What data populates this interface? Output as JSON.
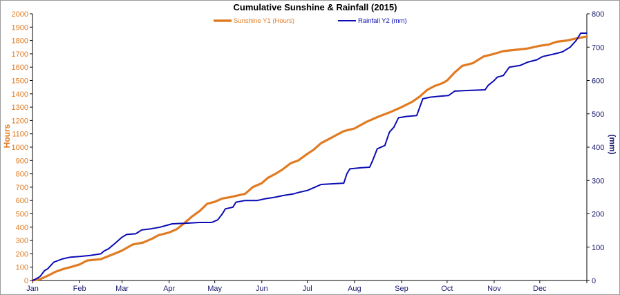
{
  "colors": {
    "sunshine": "#e07b22",
    "rainfall": "#0b0bb4",
    "left_axis_text": "#e07b22",
    "right_axis_text": "#1a1a6e",
    "month_text": "#1a1a6e"
  },
  "chart_data": {
    "type": "line",
    "title": "Cumulative Sunshine & Rainfall (2015)",
    "xlabel": "",
    "y1label": "Hours",
    "y2label": "(mm)",
    "x_range": [
      0,
      365
    ],
    "y1lim": [
      0,
      2000
    ],
    "y2lim": [
      0,
      800
    ],
    "y1_ticks": [
      0,
      100,
      200,
      300,
      400,
      500,
      600,
      700,
      800,
      900,
      1000,
      1100,
      1200,
      1300,
      1400,
      1500,
      1600,
      1700,
      1800,
      1900,
      2000
    ],
    "y2_ticks": [
      0,
      100,
      200,
      300,
      400,
      500,
      600,
      700,
      800
    ],
    "months": [
      {
        "label": "Jan",
        "day": 0
      },
      {
        "label": "Feb",
        "day": 31
      },
      {
        "label": "Mar",
        "day": 59
      },
      {
        "label": "Apr",
        "day": 90
      },
      {
        "label": "May",
        "day": 120
      },
      {
        "label": "Jun",
        "day": 151
      },
      {
        "label": "Jul",
        "day": 181
      },
      {
        "label": "Aug",
        "day": 212
      },
      {
        "label": "Sep",
        "day": 243
      },
      {
        "label": "Oct",
        "day": 273
      },
      {
        "label": "Nov",
        "day": 304
      },
      {
        "label": "Dec",
        "day": 334
      }
    ],
    "grid": false,
    "legend_position": "top-center",
    "series": [
      {
        "name": "Sunshine Y1 (Hours)",
        "axis": "y1",
        "points": [
          [
            0,
            0
          ],
          [
            5,
            10
          ],
          [
            10,
            35
          ],
          [
            15,
            65
          ],
          [
            20,
            85
          ],
          [
            25,
            100
          ],
          [
            31,
            120
          ],
          [
            36,
            150
          ],
          [
            45,
            160
          ],
          [
            55,
            205
          ],
          [
            59,
            225
          ],
          [
            66,
            270
          ],
          [
            73,
            285
          ],
          [
            79,
            315
          ],
          [
            83,
            340
          ],
          [
            90,
            360
          ],
          [
            95,
            385
          ],
          [
            100,
            430
          ],
          [
            105,
            480
          ],
          [
            110,
            520
          ],
          [
            115,
            575
          ],
          [
            120,
            590
          ],
          [
            125,
            615
          ],
          [
            130,
            625
          ],
          [
            140,
            650
          ],
          [
            145,
            700
          ],
          [
            151,
            730
          ],
          [
            155,
            770
          ],
          [
            160,
            800
          ],
          [
            165,
            835
          ],
          [
            170,
            880
          ],
          [
            175,
            900
          ],
          [
            181,
            950
          ],
          [
            185,
            980
          ],
          [
            190,
            1030
          ],
          [
            195,
            1060
          ],
          [
            200,
            1090
          ],
          [
            205,
            1120
          ],
          [
            212,
            1140
          ],
          [
            220,
            1190
          ],
          [
            228,
            1230
          ],
          [
            235,
            1260
          ],
          [
            243,
            1300
          ],
          [
            250,
            1340
          ],
          [
            255,
            1380
          ],
          [
            260,
            1430
          ],
          [
            265,
            1460
          ],
          [
            270,
            1480
          ],
          [
            273,
            1500
          ],
          [
            278,
            1560
          ],
          [
            283,
            1610
          ],
          [
            290,
            1630
          ],
          [
            297,
            1680
          ],
          [
            304,
            1700
          ],
          [
            310,
            1720
          ],
          [
            318,
            1730
          ],
          [
            326,
            1740
          ],
          [
            334,
            1760
          ],
          [
            340,
            1770
          ],
          [
            345,
            1790
          ],
          [
            352,
            1800
          ],
          [
            358,
            1815
          ],
          [
            365,
            1830
          ]
        ]
      },
      {
        "name": "Rainfall Y2 (mm)",
        "axis": "y2",
        "points": [
          [
            0,
            0
          ],
          [
            2,
            4
          ],
          [
            5,
            12
          ],
          [
            8,
            30
          ],
          [
            10,
            35
          ],
          [
            14,
            55
          ],
          [
            20,
            65
          ],
          [
            25,
            70
          ],
          [
            31,
            72
          ],
          [
            38,
            75
          ],
          [
            45,
            80
          ],
          [
            47,
            88
          ],
          [
            50,
            95
          ],
          [
            54,
            110
          ],
          [
            59,
            130
          ],
          [
            62,
            138
          ],
          [
            68,
            140
          ],
          [
            72,
            152
          ],
          [
            78,
            155
          ],
          [
            84,
            160
          ],
          [
            88,
            165
          ],
          [
            92,
            170
          ],
          [
            102,
            172
          ],
          [
            110,
            174
          ],
          [
            118,
            174
          ],
          [
            122,
            182
          ],
          [
            125,
            200
          ],
          [
            127,
            215
          ],
          [
            132,
            220
          ],
          [
            134,
            235
          ],
          [
            140,
            240
          ],
          [
            148,
            240
          ],
          [
            153,
            245
          ],
          [
            160,
            250
          ],
          [
            165,
            255
          ],
          [
            172,
            260
          ],
          [
            176,
            265
          ],
          [
            181,
            270
          ],
          [
            186,
            280
          ],
          [
            190,
            288
          ],
          [
            197,
            290
          ],
          [
            205,
            292
          ],
          [
            207,
            320
          ],
          [
            209,
            335
          ],
          [
            216,
            338
          ],
          [
            222,
            340
          ],
          [
            224,
            360
          ],
          [
            227,
            395
          ],
          [
            232,
            405
          ],
          [
            235,
            445
          ],
          [
            238,
            460
          ],
          [
            241,
            488
          ],
          [
            246,
            492
          ],
          [
            253,
            495
          ],
          [
            255,
            520
          ],
          [
            257,
            545
          ],
          [
            262,
            550
          ],
          [
            266,
            552
          ],
          [
            274,
            555
          ],
          [
            278,
            568
          ],
          [
            286,
            570
          ],
          [
            298,
            572
          ],
          [
            300,
            585
          ],
          [
            304,
            600
          ],
          [
            306,
            610
          ],
          [
            310,
            615
          ],
          [
            314,
            640
          ],
          [
            321,
            645
          ],
          [
            326,
            655
          ],
          [
            332,
            662
          ],
          [
            336,
            672
          ],
          [
            344,
            680
          ],
          [
            349,
            686
          ],
          [
            354,
            700
          ],
          [
            358,
            720
          ],
          [
            361,
            742
          ],
          [
            365,
            742
          ]
        ]
      }
    ]
  }
}
